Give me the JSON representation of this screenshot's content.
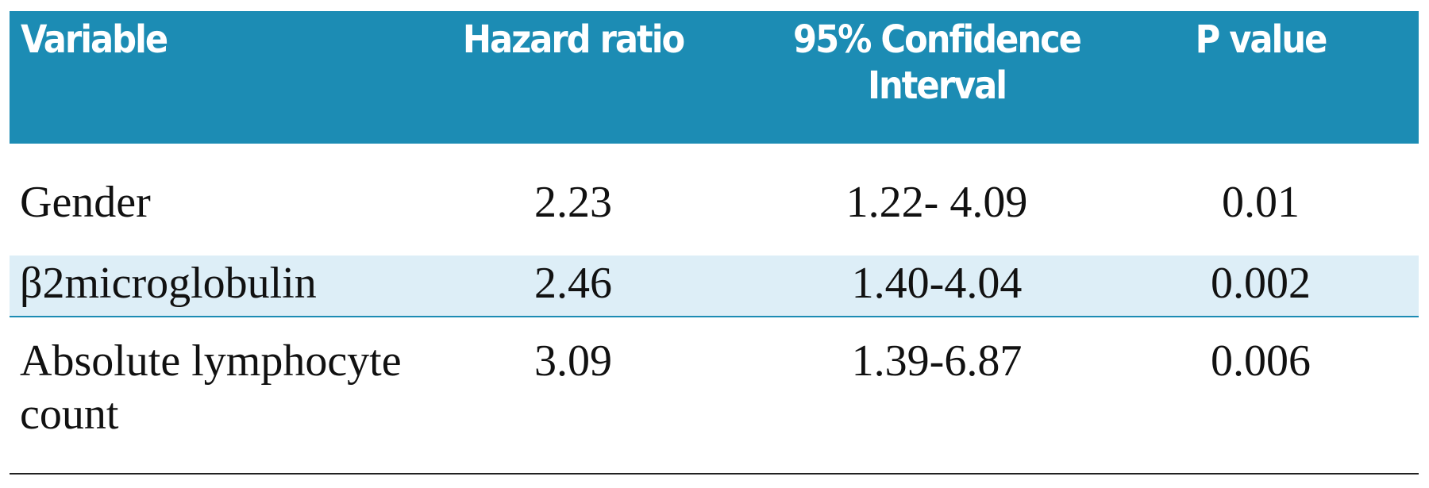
{
  "table": {
    "header": [
      "Variable",
      "Hazard ratio",
      "95% Confidence Interval",
      "P value"
    ],
    "rows": [
      [
        "Gender",
        "2.23",
        "1.22- 4.09",
        "0.01"
      ],
      [
        "β2microglobulin",
        "2.46",
        "1.40-4.04",
        "0.002"
      ],
      [
        "Absolute lymphocyte count",
        "3.09",
        "1.39-6.87",
        "0.006"
      ]
    ]
  }
}
